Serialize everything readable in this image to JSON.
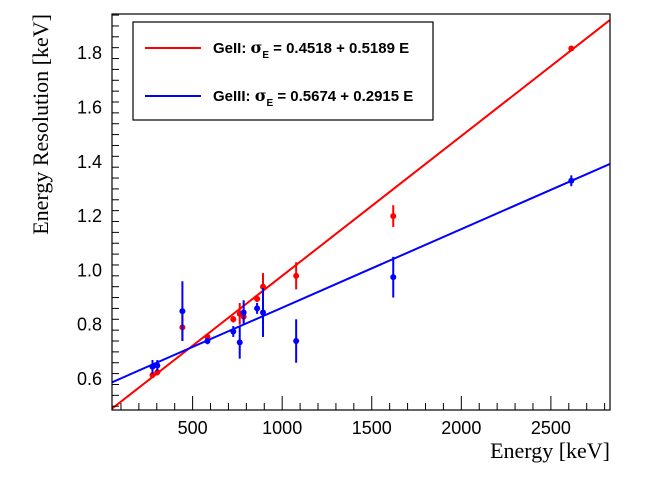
{
  "chart_data": {
    "type": "scatter",
    "title": "",
    "xlabel": "Energy [keV]",
    "ylabel": "Energy Resolution [keV]",
    "xlim": [
      50,
      2830
    ],
    "ylim": [
      0.486,
      1.944
    ],
    "x_ticks": [
      500,
      1000,
      1500,
      2000,
      2500
    ],
    "y_ticks": [
      0.6,
      0.8,
      1.0,
      1.2,
      1.4,
      1.6,
      1.8
    ],
    "x_tick_labels": [
      "500",
      "1000",
      "1500",
      "2000",
      "2500"
    ],
    "y_tick_labels": [
      "0.6",
      "0.8",
      "1.0",
      "1.2",
      "1.4",
      "1.6",
      "1.8"
    ],
    "legend_position": "top-left",
    "series": [
      {
        "name": "GeII",
        "color": "#ff0000",
        "legend_prefix": "GeII: ",
        "legend_symbol": "σ",
        "legend_subscript": "E",
        "legend_formula": " = 0.4518 + 0.5189 E",
        "fit_line": {
          "x": [
            50,
            2830
          ],
          "y": [
            0.491,
            1.922
          ]
        },
        "points": [
          {
            "x": 276,
            "y": 0.615,
            "err": 0.012
          },
          {
            "x": 303,
            "y": 0.625,
            "err": 0.012
          },
          {
            "x": 443,
            "y": 0.79,
            "err": 0.05
          },
          {
            "x": 583,
            "y": 0.755,
            "err": 0.012
          },
          {
            "x": 727,
            "y": 0.82,
            "err": 0.012
          },
          {
            "x": 763,
            "y": 0.84,
            "err": 0.04
          },
          {
            "x": 785,
            "y": 0.83,
            "err": 0.02
          },
          {
            "x": 860,
            "y": 0.895,
            "err": 0.012
          },
          {
            "x": 893,
            "y": 0.94,
            "err": 0.05
          },
          {
            "x": 1078,
            "y": 0.98,
            "err": 0.05
          },
          {
            "x": 1620,
            "y": 1.2,
            "err": 0.04
          },
          {
            "x": 2614,
            "y": 1.817,
            "err": 0.008
          }
        ]
      },
      {
        "name": "GeIII",
        "color": "#0000ff",
        "legend_prefix": "GeIII: ",
        "legend_symbol": "σ",
        "legend_subscript": "E",
        "legend_formula": " = 0.5674 + 0.2915 E",
        "fit_line": {
          "x": [
            50,
            2830
          ],
          "y": [
            0.588,
            1.392
          ]
        },
        "points": [
          {
            "x": 276,
            "y": 0.645,
            "err": 0.025
          },
          {
            "x": 303,
            "y": 0.65,
            "err": 0.02
          },
          {
            "x": 443,
            "y": 0.85,
            "err": 0.11
          },
          {
            "x": 583,
            "y": 0.74,
            "err": 0.012
          },
          {
            "x": 727,
            "y": 0.775,
            "err": 0.02
          },
          {
            "x": 763,
            "y": 0.735,
            "err": 0.06
          },
          {
            "x": 785,
            "y": 0.845,
            "err": 0.045
          },
          {
            "x": 860,
            "y": 0.86,
            "err": 0.02
          },
          {
            "x": 893,
            "y": 0.845,
            "err": 0.09
          },
          {
            "x": 1078,
            "y": 0.74,
            "err": 0.08
          },
          {
            "x": 1620,
            "y": 0.975,
            "err": 0.075
          },
          {
            "x": 2614,
            "y": 1.33,
            "err": 0.02
          }
        ]
      }
    ]
  }
}
